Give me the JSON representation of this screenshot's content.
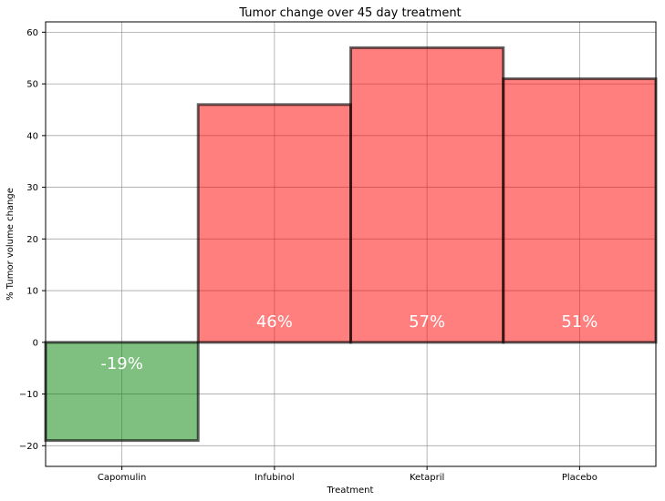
{
  "chart_data": {
    "type": "bar",
    "title": "Tumor change over 45 day treatment",
    "xlabel": "Treatment",
    "ylabel": "% Tumor volume change",
    "categories": [
      "Capomulin",
      "Infubinol",
      "Ketapril",
      "Placebo"
    ],
    "values": [
      -19,
      46,
      57,
      51
    ],
    "data_labels": [
      "-19%",
      "46%",
      "57%",
      "51%"
    ],
    "ylim": [
      -24,
      62
    ],
    "yticks": [
      -20,
      -10,
      0,
      10,
      20,
      30,
      40,
      50,
      60
    ],
    "ytick_labels": [
      "−20",
      "−10",
      "0",
      "10",
      "20",
      "30",
      "40",
      "50",
      "60"
    ],
    "grid": true,
    "colors": {
      "positive": "#ff0000",
      "negative": "#008000",
      "edge": "#000000",
      "grid": "#808080"
    }
  }
}
